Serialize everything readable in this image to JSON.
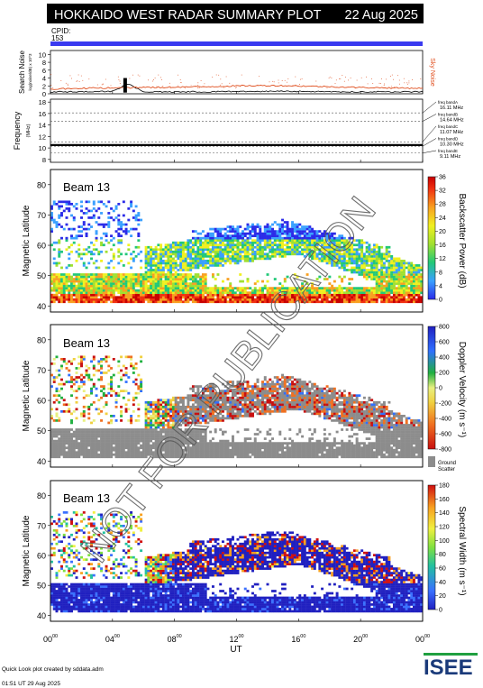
{
  "header": {
    "title": "HOKKAIDO WEST RADAR SUMMARY PLOT",
    "date": "22 Aug 2025",
    "cpid_label": "CPID:",
    "cpid_value": "153"
  },
  "watermark": "NOT FOR PUBLICATION",
  "footer": {
    "credit": "Quick Look plot created by sddata.adm",
    "timestamp": "01:51 UT 29 Aug 2025",
    "logo": "ISEE"
  },
  "colors": {
    "title_bg": "#000000",
    "cpid_bar": "#3a3af0",
    "sky_noise": "#e05020",
    "search_noise": "#000000"
  },
  "chart_data": [
    {
      "type": "line",
      "panel": "noise",
      "ylabel": "Search Noise",
      "ylabel_sub": "log(noise/dB) x 10^3",
      "right_label": "Sky Noise",
      "yticks": [
        0,
        2,
        4,
        6,
        8,
        10
      ],
      "ylim": [
        0,
        11
      ],
      "series": [
        {
          "name": "Search Noise",
          "x": [
            0,
            2,
            4,
            5,
            6,
            8,
            10,
            12,
            14,
            16,
            18,
            20,
            22,
            24
          ],
          "values": [
            0.5,
            0.5,
            0.6,
            2.5,
            0.5,
            0.5,
            0.5,
            0.6,
            0.6,
            0.6,
            0.5,
            0.5,
            0.5,
            0.5
          ]
        },
        {
          "name": "Sky Noise",
          "x": [
            0,
            2,
            4,
            6,
            8,
            10,
            12,
            14,
            16,
            18,
            20,
            22,
            24
          ],
          "values": [
            1.2,
            1.4,
            1.5,
            1.6,
            1.7,
            1.8,
            2.0,
            2.1,
            2.0,
            1.8,
            1.6,
            1.5,
            1.4
          ]
        }
      ]
    },
    {
      "type": "line",
      "panel": "frequency",
      "ylabel": "Frequency",
      "yunit": "(MHz)",
      "yticks": [
        8,
        10,
        12,
        14,
        16,
        18
      ],
      "ylim": [
        7.5,
        18.5
      ],
      "bands": [
        {
          "name": "freq bandA",
          "freq": "16.11 MHz"
        },
        {
          "name": "freq bandB",
          "freq": "14.64 MHz"
        },
        {
          "name": "freq bandC",
          "freq": "11.07 MHz"
        },
        {
          "name": "freq bandD",
          "freq": "10.30 MHz"
        },
        {
          "name": "freq bandE",
          "freq": "9.11 MHz"
        }
      ],
      "series": [
        {
          "name": "operating frequency",
          "x": [
            0,
            24
          ],
          "values": [
            10.5,
            10.5
          ]
        }
      ]
    },
    {
      "type": "heatmap",
      "panel": "power",
      "label": "Beam 13",
      "ylabel": "Magnetic Latitude",
      "yticks": [
        40,
        50,
        60,
        70,
        80
      ],
      "ylim": [
        38,
        85
      ],
      "colorbar_label": "Backscatter Power (dB)",
      "colorbar_ticks": [
        0,
        4,
        8,
        12,
        16,
        20,
        24,
        28,
        32,
        36
      ],
      "colorbar_range": [
        0,
        36
      ]
    },
    {
      "type": "heatmap",
      "panel": "velocity",
      "label": "Beam 13",
      "ylabel": "Magnetic Latitude",
      "yticks": [
        40,
        50,
        60,
        70,
        80
      ],
      "ylim": [
        38,
        85
      ],
      "colorbar_label": "Doppler Velocity (m s⁻¹)",
      "colorbar_ticks": [
        800,
        600,
        400,
        200,
        0,
        -200,
        -400,
        -600,
        -800
      ],
      "colorbar_range": [
        -800,
        800
      ],
      "ground_scatter_label": "Ground Scatter"
    },
    {
      "type": "heatmap",
      "panel": "width",
      "label": "Beam 13",
      "ylabel": "Magnetic Latitude",
      "yticks": [
        40,
        50,
        60,
        70,
        80
      ],
      "ylim": [
        38,
        85
      ],
      "colorbar_label": "Spectral Width (m s⁻¹)",
      "colorbar_ticks": [
        0,
        20,
        40,
        60,
        80,
        100,
        120,
        140,
        160,
        180
      ],
      "colorbar_range": [
        0,
        180
      ]
    }
  ],
  "xaxis": {
    "label": "UT",
    "ticks": [
      "00",
      "04",
      "08",
      "12",
      "16",
      "20",
      "00"
    ],
    "tick_sup": "00",
    "range_hours": [
      0,
      24
    ]
  }
}
